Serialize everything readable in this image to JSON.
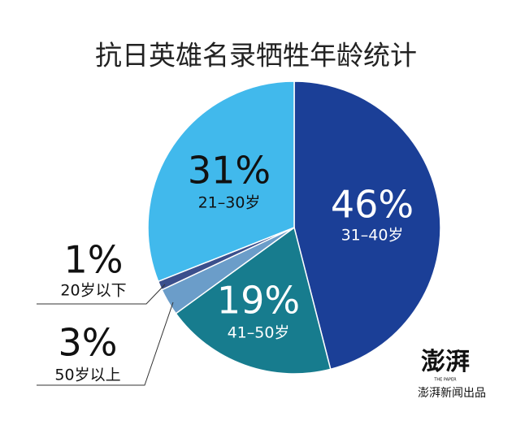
{
  "chart_data": {
    "type": "pie",
    "title": "抗日英雄名录牺牲年龄统计",
    "categories": [
      "31–40岁",
      "41–50岁",
      "50岁以上",
      "20岁以下",
      "21–30岁"
    ],
    "values": [
      46,
      19,
      3,
      1,
      31
    ],
    "value_labels": [
      "46%",
      "19%",
      "3%",
      "1%",
      "31%"
    ],
    "colors": [
      "#1b3f97",
      "#177c8e",
      "#6b9dc9",
      "#3b4f8c",
      "#41b9ec"
    ]
  },
  "source": {
    "logo": "澎湃",
    "logo_sub": "THE PAPER",
    "text": "澎湃新闻出品"
  }
}
